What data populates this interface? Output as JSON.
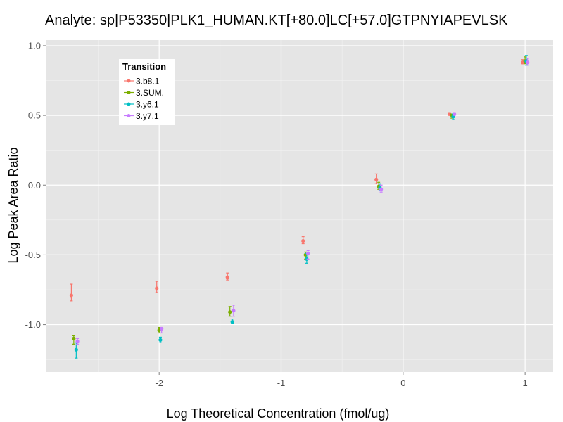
{
  "chart_data": {
    "type": "scatter",
    "title": "Analyte: sp|P53350|PLK1_HUMAN.KT[+80.0]LC[+57.0]GTPNYIAPEVLSK",
    "xlabel": "Log Theoretical Concentration (fmol/ug)",
    "ylabel": "Log Peak Area Ratio",
    "xlim": [
      -2.93,
      1.23
    ],
    "ylim": [
      -1.34,
      1.04
    ],
    "x_ticks": [
      -2,
      -1,
      0,
      1
    ],
    "x_tick_labels": [
      "-2",
      "-1",
      "0",
      "1"
    ],
    "y_ticks": [
      -1.0,
      -0.5,
      0.0,
      0.5,
      1.0
    ],
    "y_tick_labels": [
      "-1.0",
      "-0.5",
      "0.0",
      "0.5",
      "1.0"
    ],
    "grid": true,
    "legend": {
      "title": "Transition",
      "position": "top-left"
    },
    "series": [
      {
        "name": "3.b8.1",
        "color": "#F8766D",
        "x": [
          -2.72,
          -2.02,
          -1.44,
          -0.82,
          -0.22,
          0.38,
          0.98
        ],
        "y": [
          -0.79,
          -0.74,
          -0.66,
          -0.4,
          0.04,
          0.51,
          0.88
        ],
        "err_low": [
          -0.83,
          -0.77,
          -0.68,
          -0.42,
          0.01,
          0.5,
          0.87
        ],
        "err_high": [
          -0.71,
          -0.69,
          -0.63,
          -0.37,
          0.08,
          0.52,
          0.9
        ]
      },
      {
        "name": "3.SUM.",
        "color": "#7CAE00",
        "x": [
          -2.7,
          -2.0,
          -1.42,
          -0.8,
          -0.2,
          0.4,
          1.0
        ],
        "y": [
          -1.1,
          -1.04,
          -0.91,
          -0.5,
          -0.01,
          0.5,
          0.89
        ],
        "err_low": [
          -1.14,
          -1.06,
          -0.94,
          -0.53,
          -0.03,
          0.48,
          0.87
        ],
        "err_high": [
          -1.08,
          -1.02,
          -0.87,
          -0.48,
          0.02,
          0.51,
          0.92
        ]
      },
      {
        "name": "3.y6.1",
        "color": "#00BFC4",
        "x": [
          -2.68,
          -1.99,
          -1.4,
          -0.79,
          -0.19,
          0.41,
          1.01
        ],
        "y": [
          -1.18,
          -1.11,
          -0.98,
          -0.53,
          -0.02,
          0.49,
          0.89
        ],
        "err_low": [
          -1.24,
          -1.13,
          -0.99,
          -0.56,
          -0.04,
          0.47,
          0.86
        ],
        "err_high": [
          -1.13,
          -1.09,
          -0.96,
          -0.49,
          0.01,
          0.51,
          0.93
        ]
      },
      {
        "name": "3.y7.1",
        "color": "#C77CFF",
        "x": [
          -2.67,
          -1.98,
          -1.39,
          -0.78,
          -0.18,
          0.42,
          1.02
        ],
        "y": [
          -1.12,
          -1.03,
          -0.9,
          -0.49,
          -0.03,
          0.51,
          0.88
        ],
        "err_low": [
          -1.14,
          -1.06,
          -0.94,
          -0.53,
          -0.05,
          0.5,
          0.86
        ],
        "err_high": [
          -1.1,
          -1.02,
          -0.86,
          -0.47,
          0.0,
          0.52,
          0.91
        ]
      }
    ]
  }
}
